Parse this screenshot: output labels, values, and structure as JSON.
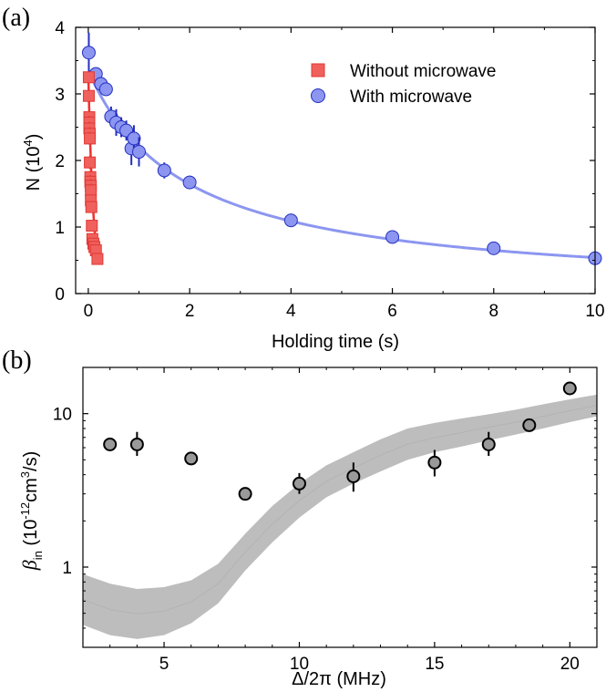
{
  "chart_data": [
    {
      "panel_label": "(a)",
      "type": "scatter",
      "xlabel": "Holding time (s)",
      "ylabel_main": "N (10",
      "ylabel_sup": "4",
      "ylabel_end": ")",
      "xlim": [
        -0.25,
        10
      ],
      "ylim": [
        0,
        4
      ],
      "xticks": [
        0,
        2,
        4,
        6,
        8,
        10
      ],
      "yticks": [
        0,
        1,
        2,
        3,
        4
      ],
      "legend_position": "top-right",
      "series": [
        {
          "name": "Without microwave",
          "marker": "square",
          "color": "#f0605c",
          "edge": "#e03a36",
          "fit_color": "#f0302c",
          "x": [
            0.01,
            0.01,
            0.02,
            0.02,
            0.02,
            0.03,
            0.03,
            0.03,
            0.04,
            0.04,
            0.05,
            0.05,
            0.05,
            0.06,
            0.07,
            0.08,
            0.1,
            0.12,
            0.15,
            0.18
          ],
          "y": [
            3.25,
            2.97,
            2.65,
            2.57,
            2.48,
            2.4,
            2.33,
            1.97,
            1.75,
            1.68,
            1.62,
            1.55,
            1.4,
            1.3,
            1.02,
            0.82,
            0.75,
            0.7,
            0.65,
            0.52
          ],
          "err": [
            0.08,
            0.08,
            0.1,
            0.1,
            0.1,
            0.1,
            0.1,
            0.1,
            0.1,
            0.1,
            0.1,
            0.1,
            0.08,
            0.08,
            0.06,
            0.06,
            0.06,
            0.06,
            0.06,
            0.05
          ],
          "fit": {
            "N0": 3.3,
            "tau": 0.1
          }
        },
        {
          "name": "With microwave",
          "marker": "circle",
          "color": "#8c96f0",
          "edge": "#2530c0",
          "fit_color": "#8c96f0",
          "x": [
            0.01,
            0.15,
            0.25,
            0.35,
            0.45,
            0.55,
            0.65,
            0.75,
            0.85,
            0.9,
            1.0,
            1.5,
            2.0,
            4.0,
            6.0,
            8.0,
            10.0
          ],
          "y": [
            3.62,
            3.3,
            3.15,
            3.07,
            2.66,
            2.57,
            2.5,
            2.45,
            2.18,
            2.33,
            2.13,
            1.85,
            1.67,
            1.1,
            0.85,
            0.68,
            0.53
          ],
          "err": [
            0.3,
            0.1,
            0.1,
            0.1,
            0.15,
            0.2,
            0.15,
            0.15,
            0.25,
            0.2,
            0.22,
            0.12,
            0.1,
            0.1,
            0.07,
            0.07,
            0.06
          ],
          "fit": {
            "A": 3.35,
            "k": 0.52
          }
        }
      ]
    },
    {
      "panel_label": "(b)",
      "type": "scatter",
      "xlabel": "Δ/2π (MHz)",
      "ylabel_main": "β",
      "ylabel_sub": "in",
      "ylabel_units_pre": " (10",
      "ylabel_units_sup1": "-12",
      "ylabel_units_mid": "cm",
      "ylabel_units_sup2": "3",
      "ylabel_units_end": "/s)",
      "yscale": "log",
      "xlim": [
        2,
        21
      ],
      "ylim": [
        0.3,
        20
      ],
      "xticks": [
        5,
        10,
        15,
        20
      ],
      "yticks": [
        1,
        10
      ],
      "series": [
        {
          "name": "data",
          "marker": "circle",
          "color": "#999999",
          "edge": "#000000",
          "x": [
            3,
            4,
            6,
            8,
            10,
            12,
            15,
            17,
            18.5,
            20
          ],
          "y": [
            6.3,
            6.3,
            5.1,
            3.0,
            3.5,
            3.9,
            4.8,
            6.3,
            8.4,
            14.6
          ],
          "err_low": [
            0.4,
            1.0,
            0.4,
            0.2,
            0.5,
            0.8,
            0.9,
            1.0,
            0.6,
            0.8
          ],
          "err_high": [
            0.4,
            1.3,
            0.4,
            0.2,
            0.6,
            0.9,
            1.0,
            1.3,
            0.6,
            0.8
          ]
        }
      ],
      "band": {
        "color": "#bdbdbd",
        "x": [
          2,
          3,
          4,
          5,
          6,
          7,
          8,
          9,
          10,
          11,
          12,
          13,
          14,
          15,
          16,
          17,
          18,
          19,
          20,
          21
        ],
        "lower": [
          0.42,
          0.36,
          0.34,
          0.36,
          0.43,
          0.58,
          0.95,
          1.45,
          2.1,
          2.85,
          3.5,
          4.2,
          5.0,
          5.6,
          6.1,
          6.7,
          7.3,
          8.0,
          8.8,
          9.6
        ],
        "upper": [
          0.9,
          0.78,
          0.72,
          0.74,
          0.82,
          1.05,
          1.65,
          2.5,
          3.5,
          4.6,
          5.6,
          6.8,
          8.0,
          8.7,
          9.3,
          9.9,
          10.6,
          11.5,
          12.4,
          13.3
        ]
      }
    }
  ]
}
